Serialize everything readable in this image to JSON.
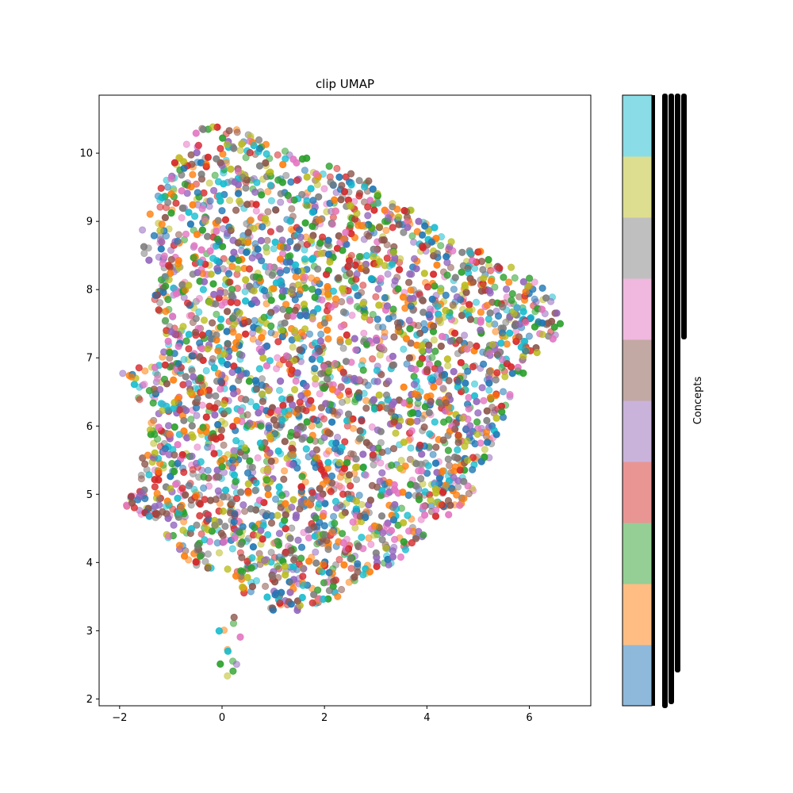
{
  "chart_data": {
    "type": "scatter",
    "title": "clip UMAP",
    "xlabel": "",
    "ylabel": "",
    "xlim": [
      -2.4,
      7.2
    ],
    "ylim": [
      1.9,
      10.85
    ],
    "xticks": [
      -2,
      0,
      2,
      4,
      6
    ],
    "yticks": [
      2,
      3,
      4,
      5,
      6,
      7,
      8,
      9,
      10
    ],
    "grid": false,
    "point_alpha": 0.55,
    "point_count_estimate": 6000,
    "colormap_colors": [
      "#1f77b4",
      "#ff7f0e",
      "#2ca02c",
      "#d62728",
      "#9467bd",
      "#8c564b",
      "#e377c2",
      "#7f7f7f",
      "#bcbd22",
      "#17becf"
    ],
    "cloud_outline": [
      [
        -0.9,
        10.0
      ],
      [
        -0.3,
        10.45
      ],
      [
        0.4,
        10.35
      ],
      [
        1.0,
        10.1
      ],
      [
        1.8,
        9.9
      ],
      [
        2.6,
        9.75
      ],
      [
        3.3,
        9.4
      ],
      [
        4.0,
        9.0
      ],
      [
        4.6,
        8.7
      ],
      [
        5.2,
        8.55
      ],
      [
        5.9,
        8.25
      ],
      [
        6.4,
        8.05
      ],
      [
        6.75,
        7.8
      ],
      [
        6.6,
        7.35
      ],
      [
        6.3,
        7.1
      ],
      [
        6.0,
        6.9
      ],
      [
        5.6,
        6.3
      ],
      [
        5.3,
        5.7
      ],
      [
        5.0,
        5.1
      ],
      [
        4.6,
        4.8
      ],
      [
        4.1,
        4.5
      ],
      [
        3.6,
        4.1
      ],
      [
        2.9,
        3.8
      ],
      [
        2.3,
        3.5
      ],
      [
        1.6,
        3.3
      ],
      [
        1.0,
        3.3
      ],
      [
        0.5,
        3.5
      ],
      [
        0.2,
        3.9
      ],
      [
        -0.5,
        3.9
      ],
      [
        -0.9,
        4.2
      ],
      [
        -1.3,
        4.6
      ],
      [
        -1.9,
        4.8
      ],
      [
        -1.6,
        5.4
      ],
      [
        -1.4,
        6.0
      ],
      [
        -1.7,
        6.5
      ],
      [
        -2.0,
        6.8
      ],
      [
        -1.3,
        6.9
      ],
      [
        -1.1,
        7.4
      ],
      [
        -1.4,
        8.0
      ],
      [
        -1.7,
        8.7
      ],
      [
        -1.3,
        9.3
      ]
    ],
    "tail_outline": [
      [
        0.0,
        3.6
      ],
      [
        0.5,
        3.6
      ],
      [
        0.35,
        2.5
      ],
      [
        0.15,
        2.3
      ],
      [
        -0.15,
        2.5
      ]
    ],
    "colorbar": {
      "label": "Concepts",
      "colors": [
        "#8fb9da",
        "#ffbd83",
        "#95cf95",
        "#e99594",
        "#c9b3da",
        "#c2a9a4",
        "#f0b8df",
        "#bfbfbf",
        "#dede90",
        "#8adde6"
      ]
    }
  }
}
